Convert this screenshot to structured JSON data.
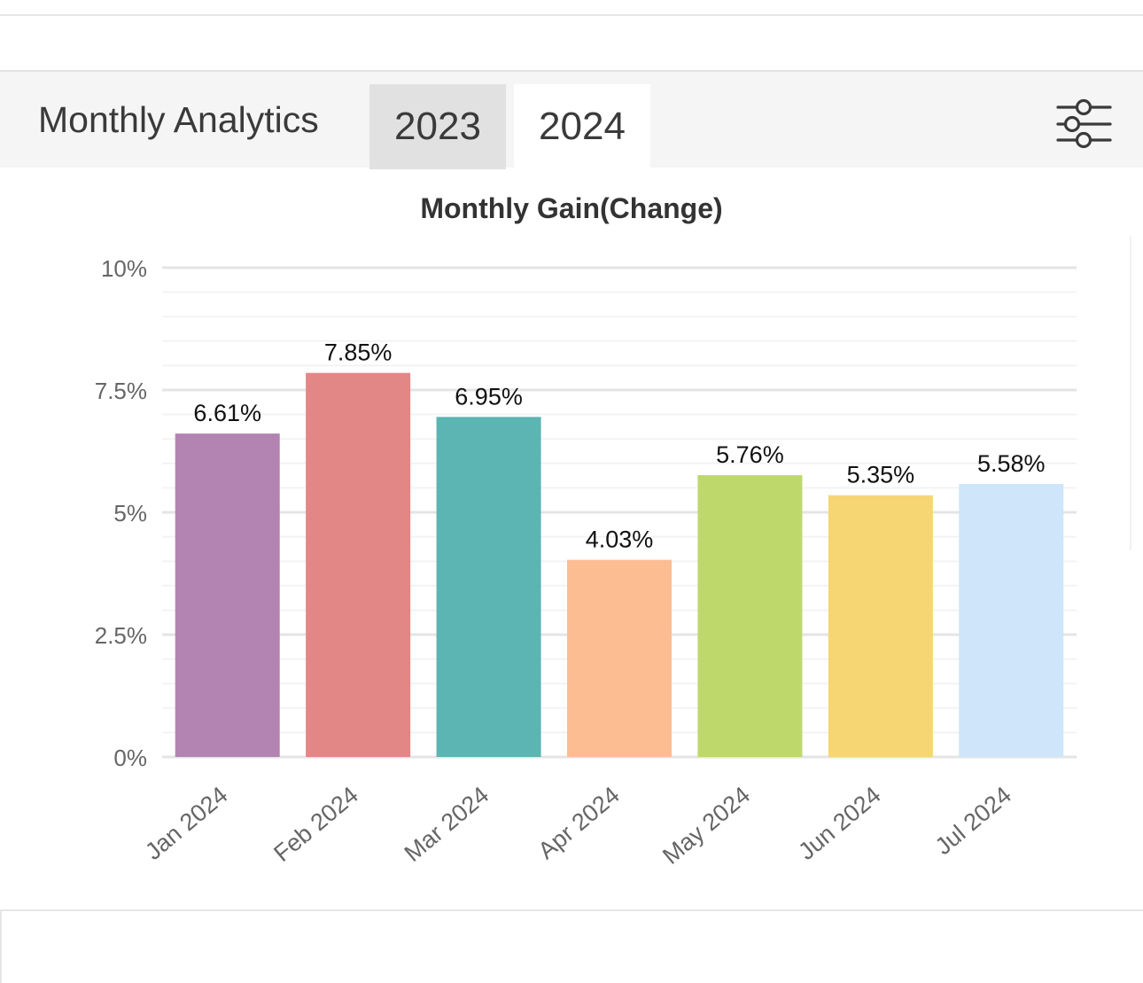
{
  "header": {
    "title": "Monthly Analytics",
    "tabs": [
      {
        "label": "2023",
        "active": false
      },
      {
        "label": "2024",
        "active": true
      }
    ],
    "filter_icon": "sliders-icon"
  },
  "chart_data": {
    "type": "bar",
    "title": "Monthly Gain(Change)",
    "xlabel": "",
    "ylabel": "",
    "categories": [
      "Jan 2024",
      "Feb 2024",
      "Mar 2024",
      "Apr 2024",
      "May 2024",
      "Jun 2024",
      "Jul 2024"
    ],
    "values": [
      6.61,
      7.85,
      6.95,
      4.03,
      5.76,
      5.35,
      5.58
    ],
    "value_labels": [
      "6.61%",
      "7.85%",
      "6.95%",
      "4.03%",
      "5.76%",
      "5.35%",
      "5.58%"
    ],
    "colors": [
      "#b384b2",
      "#e28785",
      "#5cb4b3",
      "#fdbd93",
      "#bfd86b",
      "#f6d673",
      "#cfe5f9"
    ],
    "ylim": [
      0,
      10
    ],
    "yticks": [
      0,
      2.5,
      5,
      7.5,
      10
    ],
    "ytick_labels": [
      "0%",
      "2.5%",
      "5%",
      "7.5%",
      "10%"
    ],
    "grid": true,
    "legend": "none"
  }
}
